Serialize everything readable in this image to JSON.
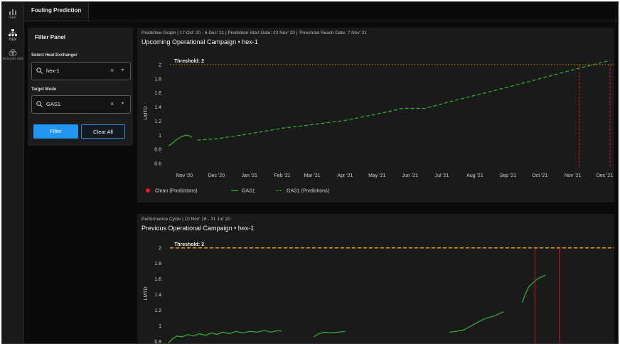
{
  "app": {
    "tab": "Fouling Prediction"
  },
  "rail": {
    "items": [
      {
        "label": "REP",
        "icon": "bar-chart-icon"
      },
      {
        "label": "HEX",
        "icon": "hierarchy-icon"
      },
      {
        "label": "Extensio nkit",
        "icon": "toolkit-icon"
      }
    ]
  },
  "filter_panel": {
    "title": "Filter Panel",
    "hex_label": "Select Heat Exchanger",
    "hex_value": "hex-1",
    "mode_label": "Target Mode",
    "mode_value": "GAS1",
    "clear_symbol": "×",
    "chevron_symbol": "▾",
    "filter_button": "Filter",
    "clear_button": "Clear All"
  },
  "colors": {
    "accent": "#2196f3",
    "series": "#2eb82e",
    "threshold": "#e6a100",
    "marker": "#e01e1e"
  },
  "chart_data": [
    {
      "type": "line",
      "subtitle": "Predictive Graph | 17 Oct' 20 - 6 Dec' 21 | Prediction Start Date: 23 Nov' 20 | Threshold Reach Date: 7 Nov' 21",
      "title": "Upcoming Operational Campaign • hex-1",
      "ylabel": "LMTD",
      "ylim": [
        0.55,
        2.08
      ],
      "yticks": [
        0.6,
        0.8,
        1,
        1.2,
        1.4,
        1.6,
        1.8,
        2
      ],
      "ytick_labels": [
        "0.6",
        "0.8",
        "1",
        "1.2",
        "1.4",
        "1.6",
        "1.8",
        "2"
      ],
      "xlim": [
        "2020-10-17",
        "2021-12-06"
      ],
      "xticks": [
        {
          "date": "2020-11-01",
          "label": "Nov '20"
        },
        {
          "date": "2020-12-01",
          "label": "Dec '20"
        },
        {
          "date": "2021-01-01",
          "label": "Jan '21"
        },
        {
          "date": "2021-02-01",
          "label": "Feb '21"
        },
        {
          "date": "2021-03-01",
          "label": "Mar '21"
        },
        {
          "date": "2021-04-01",
          "label": "Apr '21"
        },
        {
          "date": "2021-05-01",
          "label": "May '21"
        },
        {
          "date": "2021-06-01",
          "label": "Jun '21"
        },
        {
          "date": "2021-07-01",
          "label": "Jul '21"
        },
        {
          "date": "2021-08-01",
          "label": "Aug '21"
        },
        {
          "date": "2021-09-01",
          "label": "Sep '21"
        },
        {
          "date": "2021-10-01",
          "label": "Oct '21"
        },
        {
          "date": "2021-11-01",
          "label": "Nov '21"
        },
        {
          "date": "2021-12-01",
          "label": "Dec '21"
        }
      ],
      "threshold": {
        "value": 2,
        "label": "Threshold: 2"
      },
      "vlines": [
        "2021-11-07",
        "2021-12-06"
      ],
      "series": [
        {
          "name": "GAS1",
          "style": "solid",
          "points": [
            [
              "2020-10-17",
              0.85
            ],
            [
              "2020-10-19",
              0.87
            ],
            [
              "2020-10-21",
              0.89
            ],
            [
              "2020-10-23",
              0.92
            ],
            [
              "2020-10-25",
              0.94
            ],
            [
              "2020-10-27",
              0.96
            ],
            [
              "2020-10-29",
              0.98
            ],
            [
              "2020-10-31",
              0.99
            ],
            [
              "2020-11-02",
              1.0
            ],
            [
              "2020-11-04",
              1.0
            ],
            [
              "2020-11-06",
              0.99
            ],
            [
              "2020-11-08",
              0.97
            ]
          ]
        },
        {
          "name": "GAS1 (Predictions)",
          "style": "dashed",
          "points": [
            [
              "2020-11-13",
              0.93
            ],
            [
              "2020-12-01",
              0.95
            ],
            [
              "2021-01-01",
              1.02
            ],
            [
              "2021-02-01",
              1.1
            ],
            [
              "2021-03-01",
              1.15
            ],
            [
              "2021-04-01",
              1.21
            ],
            [
              "2021-05-01",
              1.3
            ],
            [
              "2021-05-25",
              1.38
            ],
            [
              "2021-06-15",
              1.38
            ],
            [
              "2021-07-15",
              1.5
            ],
            [
              "2021-09-01",
              1.68
            ],
            [
              "2021-11-07",
              1.95
            ],
            [
              "2021-12-06",
              2.06
            ]
          ]
        }
      ],
      "legend": [
        {
          "label": "Clean (Predictions)",
          "marker": "dot"
        },
        {
          "label": "GAS1",
          "marker": "line"
        },
        {
          "label": "GAS1 (Predictions)",
          "marker": "dash"
        }
      ]
    },
    {
      "type": "line",
      "subtitle": "Performance Cycle | 10 Nov' 18 - 31 Jul' 20",
      "title": "Previous Operational Campaign • hex-1",
      "ylabel": "LMTD",
      "ylim": [
        0.75,
        2.08
      ],
      "yticks": [
        0.8,
        1,
        1.2,
        1.4,
        1.6,
        1.8,
        2
      ],
      "ytick_labels": [
        "0.8",
        "1",
        "1.2",
        "1.4",
        "1.6",
        "1.8",
        "2"
      ],
      "xlim": [
        "2018-11-10",
        "2020-07-31"
      ],
      "threshold": {
        "value": 2,
        "label": "Threshold: 2"
      },
      "vlines": [
        "2020-04-15",
        "2020-05-20"
      ],
      "series": [
        {
          "name": "GAS1",
          "style": "solid",
          "segments": [
            [
              [
                "2018-11-10",
                0.78
              ],
              [
                "2018-11-15",
                0.83
              ],
              [
                "2018-11-22",
                0.87
              ],
              [
                "2018-11-30",
                0.86
              ],
              [
                "2018-12-08",
                0.89
              ],
              [
                "2018-12-16",
                0.87
              ],
              [
                "2018-12-24",
                0.9
              ],
              [
                "2019-01-02",
                0.88
              ],
              [
                "2019-01-10",
                0.91
              ],
              [
                "2019-01-18",
                0.89
              ],
              [
                "2019-01-26",
                0.92
              ],
              [
                "2019-02-05",
                0.9
              ],
              [
                "2019-02-14",
                0.93
              ],
              [
                "2019-02-24",
                0.91
              ],
              [
                "2019-03-06",
                0.93
              ],
              [
                "2019-03-16",
                0.92
              ],
              [
                "2019-03-26",
                0.94
              ],
              [
                "2019-04-05",
                0.92
              ],
              [
                "2019-04-15",
                0.94
              ],
              [
                "2019-04-20",
                0.93
              ]
            ],
            [
              [
                "2019-06-05",
                0.86
              ],
              [
                "2019-06-12",
                0.9
              ],
              [
                "2019-06-20",
                0.92
              ],
              [
                "2019-06-30",
                0.91
              ],
              [
                "2019-07-10",
                0.92
              ],
              [
                "2019-07-20",
                0.93
              ]
            ],
            [
              [
                "2019-12-15",
                0.92
              ],
              [
                "2019-12-25",
                0.93
              ],
              [
                "2020-01-05",
                0.95
              ],
              [
                "2020-01-15",
                1.0
              ],
              [
                "2020-01-25",
                1.05
              ],
              [
                "2020-02-05",
                1.1
              ],
              [
                "2020-02-15",
                1.12
              ],
              [
                "2020-02-25",
                1.16
              ],
              [
                "2020-03-01",
                1.18
              ]
            ],
            [
              [
                "2020-03-28",
                1.3
              ],
              [
                "2020-04-01",
                1.4
              ],
              [
                "2020-04-06",
                1.5
              ],
              [
                "2020-04-12",
                1.55
              ],
              [
                "2020-04-18",
                1.6
              ],
              [
                "2020-04-25",
                1.63
              ],
              [
                "2020-04-30",
                1.65
              ]
            ]
          ]
        }
      ]
    }
  ]
}
